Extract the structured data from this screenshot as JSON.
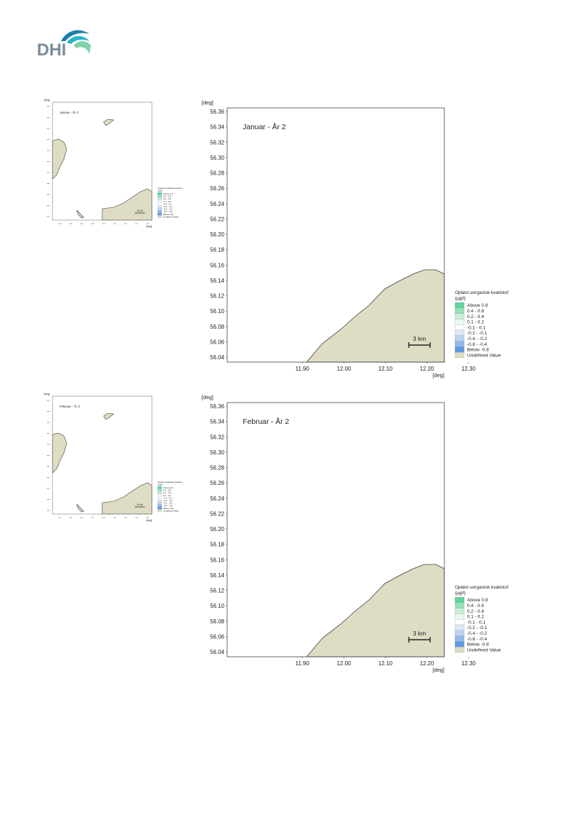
{
  "logo": {
    "text": "DHI",
    "colors": {
      "text": "#7a8d99",
      "wave_dark": "#1a7fa8",
      "wave_mid": "#2bb3c9",
      "wave_light": "#7ed3a8"
    }
  },
  "colors": {
    "land": "#dfdcc4",
    "coast": "#3a3a3a",
    "frame": "#444444"
  },
  "legend": {
    "title": [
      "Opløst uorganisk kvælstof",
      "(µg/l)"
    ],
    "entries": [
      {
        "label": "Above  0.8",
        "color": "#5fd49c"
      },
      {
        "label": "0.4 -  0.8",
        "color": "#96e2b8"
      },
      {
        "label": "0.2 -  0.4",
        "color": "#c7f0d6"
      },
      {
        "label": "0.1 -  0.2",
        "color": "#e9f8ef"
      },
      {
        "label": "-0.1 -  0.1",
        "color": "#ffffff"
      },
      {
        "label": "-0.2 - -0.1",
        "color": "#dde9f8"
      },
      {
        "label": "-0.4 - -0.2",
        "color": "#bcd3f2"
      },
      {
        "label": "-0.8 - -0.4",
        "color": "#93b8ea"
      },
      {
        "label": "Below -0.8",
        "color": "#5e9be0"
      },
      {
        "label": "Undefined Value",
        "color": "#dfdcc4"
      }
    ]
  },
  "scale_bar": {
    "label": "3 km"
  },
  "axes": {
    "unit": "[deg]",
    "y_ticks": [
      "56.36",
      "56.34",
      "56.32",
      "56.30",
      "56.28",
      "56.26",
      "56.24",
      "56.22",
      "56.20",
      "56.18",
      "56.16",
      "56.14",
      "56.12",
      "56.10",
      "56.08",
      "56.06",
      "56.04"
    ],
    "x_ticks": [
      "11.90",
      "12.00",
      "12.10",
      "12.20",
      "12.30"
    ]
  },
  "overview_scale_label": "15 km",
  "sections": [
    {
      "title": "Januar - År 2",
      "overview_title": "Januar - År 2"
    },
    {
      "title": "Februar - År 2",
      "overview_title": "Februar - År 2"
    }
  ]
}
